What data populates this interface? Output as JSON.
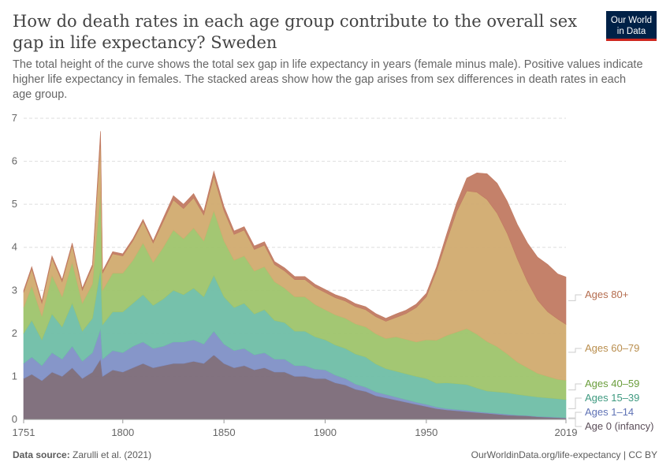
{
  "header": {
    "title": "How do death rates in each age group contribute to the overall sex gap in life expectancy? Sweden",
    "subtitle": "The total height of the curve shows the total sex gap in life expectancy in years (female minus male). Positive values indicate higher life expectancy in females. The stacked areas show how the gap arises from sex differences in death rates in each age group."
  },
  "logo": {
    "line1": "Our World",
    "line2": "in Data"
  },
  "footer": {
    "source_label": "Data source:",
    "source_text": "Zarulli et al. (2021)",
    "url_text": "OurWorldinData.org/life-expectancy | CC BY"
  },
  "colors": {
    "age0": "#7b6a78",
    "age1_14": "#8090c6",
    "age15_39": "#6fbea6",
    "age40_59": "#9ec46b",
    "age60_79": "#d1ab6f",
    "age80": "#c17a62"
  },
  "chart_data": {
    "type": "area",
    "stacked": true,
    "title": "How do death rates in each age group contribute to the overall sex gap in life expectancy? Sweden",
    "xlabel": "",
    "ylabel": "",
    "xlim": [
      1751,
      2019
    ],
    "ylim": [
      0,
      7
    ],
    "x_ticks": [
      1751,
      1800,
      1850,
      1900,
      1950,
      2019
    ],
    "y_ticks": [
      0,
      1,
      2,
      3,
      4,
      5,
      6,
      7
    ],
    "grid": "horizontal dashed",
    "legend": "inline-right",
    "x": [
      1751,
      1755,
      1760,
      1765,
      1770,
      1775,
      1780,
      1785,
      1789,
      1790,
      1795,
      1800,
      1805,
      1810,
      1815,
      1820,
      1825,
      1830,
      1835,
      1840,
      1845,
      1850,
      1855,
      1860,
      1865,
      1870,
      1875,
      1880,
      1885,
      1890,
      1895,
      1900,
      1905,
      1910,
      1915,
      1920,
      1925,
      1930,
      1935,
      1940,
      1945,
      1950,
      1955,
      1960,
      1965,
      1970,
      1975,
      1980,
      1985,
      1990,
      1995,
      2000,
      2005,
      2010,
      2015,
      2019
    ],
    "series": [
      {
        "name": "Age 0 (infancy)",
        "color_key": "age0",
        "values": [
          0.95,
          1.05,
          0.9,
          1.1,
          1.0,
          1.2,
          0.95,
          1.1,
          1.4,
          1.0,
          1.15,
          1.1,
          1.2,
          1.3,
          1.2,
          1.25,
          1.3,
          1.3,
          1.35,
          1.3,
          1.5,
          1.3,
          1.2,
          1.25,
          1.15,
          1.2,
          1.1,
          1.1,
          1.0,
          1.0,
          0.95,
          0.95,
          0.85,
          0.8,
          0.7,
          0.65,
          0.55,
          0.5,
          0.45,
          0.4,
          0.35,
          0.3,
          0.25,
          0.22,
          0.2,
          0.18,
          0.16,
          0.14,
          0.12,
          0.1,
          0.09,
          0.08,
          0.06,
          0.05,
          0.04,
          0.03
        ]
      },
      {
        "name": "Ages 1–14",
        "color_key": "age1_14",
        "values": [
          0.35,
          0.4,
          0.35,
          0.45,
          0.4,
          0.5,
          0.4,
          0.45,
          0.7,
          0.4,
          0.45,
          0.45,
          0.5,
          0.5,
          0.45,
          0.45,
          0.5,
          0.5,
          0.5,
          0.45,
          0.55,
          0.45,
          0.4,
          0.4,
          0.35,
          0.35,
          0.3,
          0.3,
          0.25,
          0.25,
          0.22,
          0.2,
          0.18,
          0.15,
          0.12,
          0.1,
          0.09,
          0.08,
          0.07,
          0.06,
          0.05,
          0.05,
          0.04,
          0.03,
          0.03,
          0.03,
          0.02,
          0.02,
          0.02,
          0.02,
          0.01,
          0.01,
          0.01,
          0.01,
          0.01,
          0.01
        ]
      },
      {
        "name": "Ages 15–39",
        "color_key": "age15_39",
        "values": [
          0.7,
          0.85,
          0.6,
          0.9,
          0.75,
          1.0,
          0.7,
          0.8,
          1.4,
          0.8,
          0.9,
          0.95,
          1.0,
          1.1,
          1.0,
          1.1,
          1.2,
          1.1,
          1.2,
          1.1,
          1.3,
          1.1,
          1.0,
          1.05,
          0.95,
          1.0,
          0.9,
          0.85,
          0.8,
          0.8,
          0.75,
          0.7,
          0.7,
          0.7,
          0.7,
          0.7,
          0.65,
          0.6,
          0.6,
          0.6,
          0.6,
          0.6,
          0.55,
          0.6,
          0.6,
          0.6,
          0.55,
          0.5,
          0.5,
          0.5,
          0.48,
          0.46,
          0.45,
          0.44,
          0.43,
          0.42
        ]
      },
      {
        "name": "Ages 40–59",
        "color_key": "age40_59",
        "values": [
          0.6,
          0.8,
          0.55,
          0.9,
          0.7,
          0.95,
          0.65,
          0.8,
          1.8,
          0.8,
          0.9,
          0.9,
          1.0,
          1.2,
          1.0,
          1.2,
          1.4,
          1.3,
          1.4,
          1.3,
          1.5,
          1.3,
          1.1,
          1.1,
          1.0,
          1.0,
          0.9,
          0.8,
          0.8,
          0.8,
          0.75,
          0.7,
          0.7,
          0.7,
          0.7,
          0.7,
          0.7,
          0.7,
          0.8,
          0.8,
          0.8,
          0.9,
          1.0,
          1.1,
          1.2,
          1.3,
          1.25,
          1.15,
          1.05,
          0.9,
          0.75,
          0.65,
          0.55,
          0.5,
          0.45,
          0.45
        ]
      },
      {
        "name": "Ages 60–79",
        "color_key": "age60_79",
        "values": [
          0.35,
          0.4,
          0.3,
          0.4,
          0.35,
          0.4,
          0.3,
          0.4,
          1.2,
          0.4,
          0.45,
          0.4,
          0.45,
          0.5,
          0.45,
          0.6,
          0.7,
          0.7,
          0.7,
          0.6,
          0.8,
          0.7,
          0.6,
          0.6,
          0.5,
          0.5,
          0.4,
          0.4,
          0.4,
          0.4,
          0.4,
          0.4,
          0.4,
          0.4,
          0.4,
          0.4,
          0.4,
          0.4,
          0.45,
          0.6,
          0.8,
          1.0,
          1.6,
          2.2,
          2.8,
          3.2,
          3.3,
          3.3,
          3.1,
          2.8,
          2.4,
          2.0,
          1.7,
          1.5,
          1.4,
          1.3
        ]
      },
      {
        "name": "Ages 80+",
        "color_key": "age80",
        "values": [
          0.05,
          0.05,
          0.05,
          0.05,
          0.05,
          0.05,
          0.05,
          0.05,
          0.2,
          0.05,
          0.05,
          0.05,
          0.05,
          0.05,
          0.05,
          0.08,
          0.1,
          0.1,
          0.1,
          0.08,
          0.12,
          0.1,
          0.08,
          0.08,
          0.08,
          0.08,
          0.07,
          0.07,
          0.07,
          0.07,
          0.07,
          0.07,
          0.07,
          0.07,
          0.07,
          0.07,
          0.07,
          0.07,
          0.08,
          0.08,
          0.08,
          0.08,
          0.1,
          0.15,
          0.2,
          0.3,
          0.45,
          0.6,
          0.7,
          0.75,
          0.8,
          0.9,
          1.0,
          1.1,
          1.05,
          1.1
        ]
      }
    ],
    "labels": [
      {
        "text": "Ages 80+",
        "color": "#b46c4e"
      },
      {
        "text": "Ages 60–79",
        "color": "#b98e4e"
      },
      {
        "text": "Ages 40–59",
        "color": "#6b9e3c"
      },
      {
        "text": "Ages 15–39",
        "color": "#3f9a80"
      },
      {
        "text": "Ages 1–14",
        "color": "#5f72b5"
      },
      {
        "text": "Age 0 (infancy)",
        "color": "#5c4f5a"
      }
    ]
  }
}
